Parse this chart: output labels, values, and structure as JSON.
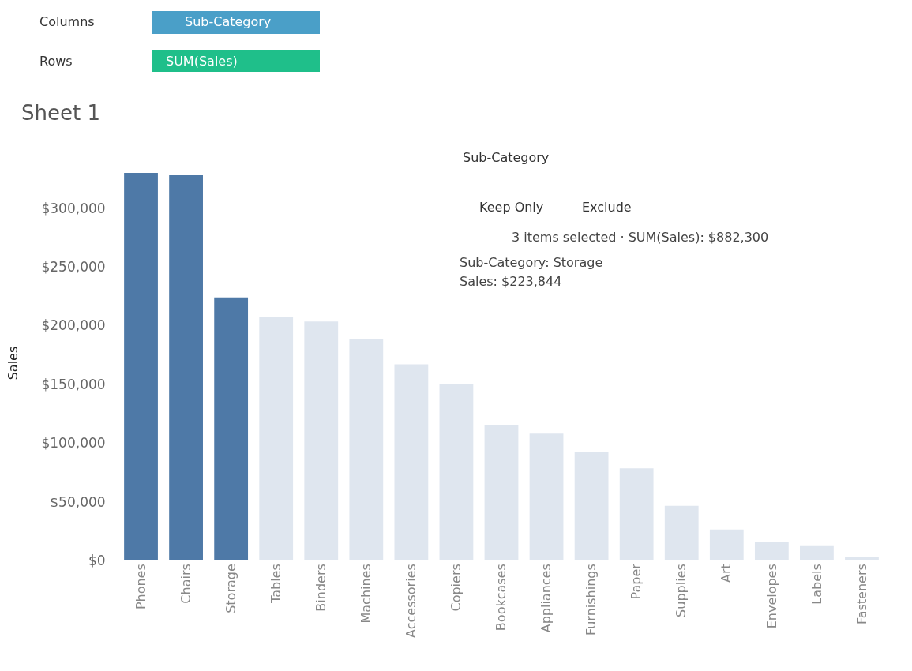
{
  "chart_data": {
    "type": "bar",
    "title": "Sheet 1",
    "xlabel": "Sub-Category",
    "ylabel": "Sales",
    "categories": [
      "Phones",
      "Chairs",
      "Storage",
      "Tables",
      "Binders",
      "Machines",
      "Accessories",
      "Copiers",
      "Bookcases",
      "Appliances",
      "Furnishings",
      "Paper",
      "Supplies",
      "Art",
      "Envelopes",
      "Labels",
      "Fasteners"
    ],
    "values": [
      330000,
      328000,
      224000,
      207000,
      203500,
      188600,
      167000,
      150000,
      115000,
      108000,
      92000,
      78400,
      46600,
      26400,
      16200,
      12200,
      2700
    ],
    "colors": [
      "#4e79a7",
      "#4e79a7",
      "#4e79a7",
      "#dfe6ef",
      "#dfe6ef",
      "#dfe6ef",
      "#dfe6ef",
      "#dfe6ef",
      "#dfe6ef",
      "#dfe6ef",
      "#dfe6ef",
      "#dfe6ef",
      "#dfe6ef",
      "#dfe6ef",
      "#dfe6ef",
      "#dfe6ef",
      "#dfe6ef"
    ],
    "ylim": [
      0,
      336000
    ],
    "yticks": [
      {
        "value": 0,
        "label": "$0"
      },
      {
        "value": 50000,
        "label": "$50,000"
      },
      {
        "value": 100000,
        "label": "$100,000"
      },
      {
        "value": 150000,
        "label": "$150,000"
      },
      {
        "value": 200000,
        "label": "$200,000"
      },
      {
        "value": 250000,
        "label": "$250,000"
      },
      {
        "value": 300000,
        "label": "$300,000"
      }
    ],
    "annotations": [
      "Columns",
      "Sub-Category",
      "Rows",
      "SUM(Sales)",
      "Keep Only",
      "Exclude",
      "3 items selected · SUM(Sales): $882,300",
      "Sub-Category: Storage",
      "Sales: $223,844"
    ]
  }
}
